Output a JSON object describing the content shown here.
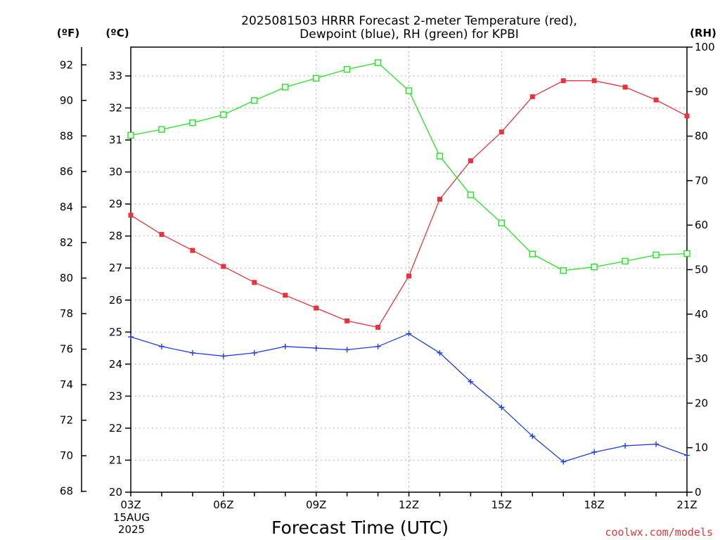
{
  "chart_data": {
    "type": "line",
    "title": "2025081503 HRRR Forecast 2-meter Temperature (red),\nDewpoint (blue), RH (green) for KPBI",
    "xlabel": "Forecast Time (UTC)",
    "x": [
      "03Z",
      "04Z",
      "05Z",
      "06Z",
      "07Z",
      "08Z",
      "09Z",
      "10Z",
      "11Z",
      "12Z",
      "13Z",
      "14Z",
      "15Z",
      "16Z",
      "17Z",
      "18Z",
      "19Z",
      "20Z",
      "21Z"
    ],
    "x_ticks": [
      "03Z",
      "06Z",
      "09Z",
      "12Z",
      "15Z",
      "18Z",
      "21Z"
    ],
    "x_start_date": [
      "15AUG",
      "2025"
    ],
    "y_left_outer": {
      "unit": "(ºF)",
      "ticks": [
        "68",
        "70",
        "72",
        "74",
        "76",
        "78",
        "80",
        "82",
        "84",
        "86",
        "88",
        "90",
        "92"
      ],
      "range": [
        67.95,
        93
      ]
    },
    "y_left_inner": {
      "unit": "(ºC)",
      "ticks": [
        "20",
        "21",
        "22",
        "23",
        "24",
        "25",
        "26",
        "27",
        "28",
        "29",
        "30",
        "31",
        "32",
        "33"
      ],
      "range": [
        20,
        33.9
      ]
    },
    "y_right": {
      "unit": "(RH)",
      "ticks": [
        "0",
        "10",
        "20",
        "30",
        "40",
        "50",
        "60",
        "70",
        "80",
        "90",
        "100"
      ],
      "range": [
        0,
        100
      ]
    },
    "grid": true,
    "series": [
      {
        "key": "temp",
        "color": "#e8323c",
        "marker": "filled-square",
        "axis": "celsius",
        "values": [
          28.65,
          28.05,
          27.55,
          27.05,
          26.55,
          26.15,
          25.75,
          25.35,
          25.15,
          26.75,
          29.15,
          30.35,
          31.25,
          32.35,
          32.85,
          32.85,
          32.65,
          32.25,
          31.75
        ]
      },
      {
        "key": "dewpoint",
        "color": "#1e3ce8",
        "marker": "plus",
        "axis": "celsius",
        "values": [
          24.85,
          24.55,
          24.35,
          24.25,
          24.35,
          24.55,
          24.5,
          24.45,
          24.55,
          24.95,
          24.35,
          23.45,
          22.65,
          21.75,
          20.95,
          21.25,
          21.45,
          21.5,
          21.15
        ]
      },
      {
        "key": "rh",
        "color": "#1ee61e",
        "marker": "open-square",
        "axis": "rh",
        "values": [
          80.2,
          81.5,
          83.0,
          84.8,
          88.0,
          91.0,
          93.0,
          95.0,
          96.5,
          90.2,
          75.5,
          66.8,
          60.5,
          53.5,
          49.8,
          50.6,
          51.9,
          53.3,
          53.6
        ]
      }
    ]
  },
  "credit": "coolwx.com/models"
}
